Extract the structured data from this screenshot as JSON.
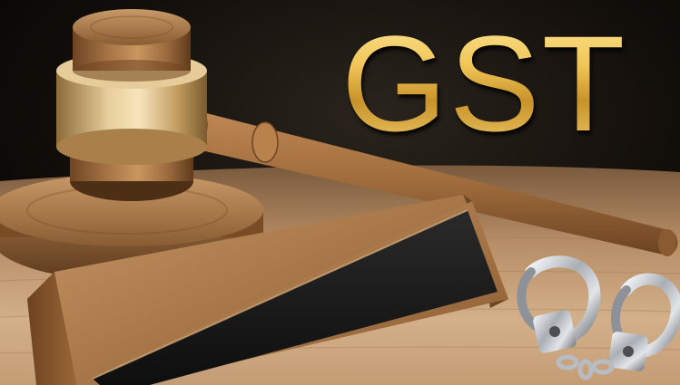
{
  "title_text": "GST",
  "colors": {
    "title_gold": "#e1b74a",
    "wood_light": "#c9a070",
    "wood_dark": "#7a4e28",
    "plaque_black": "#1a1a1a",
    "metal_silver": "#c8ccd0"
  }
}
